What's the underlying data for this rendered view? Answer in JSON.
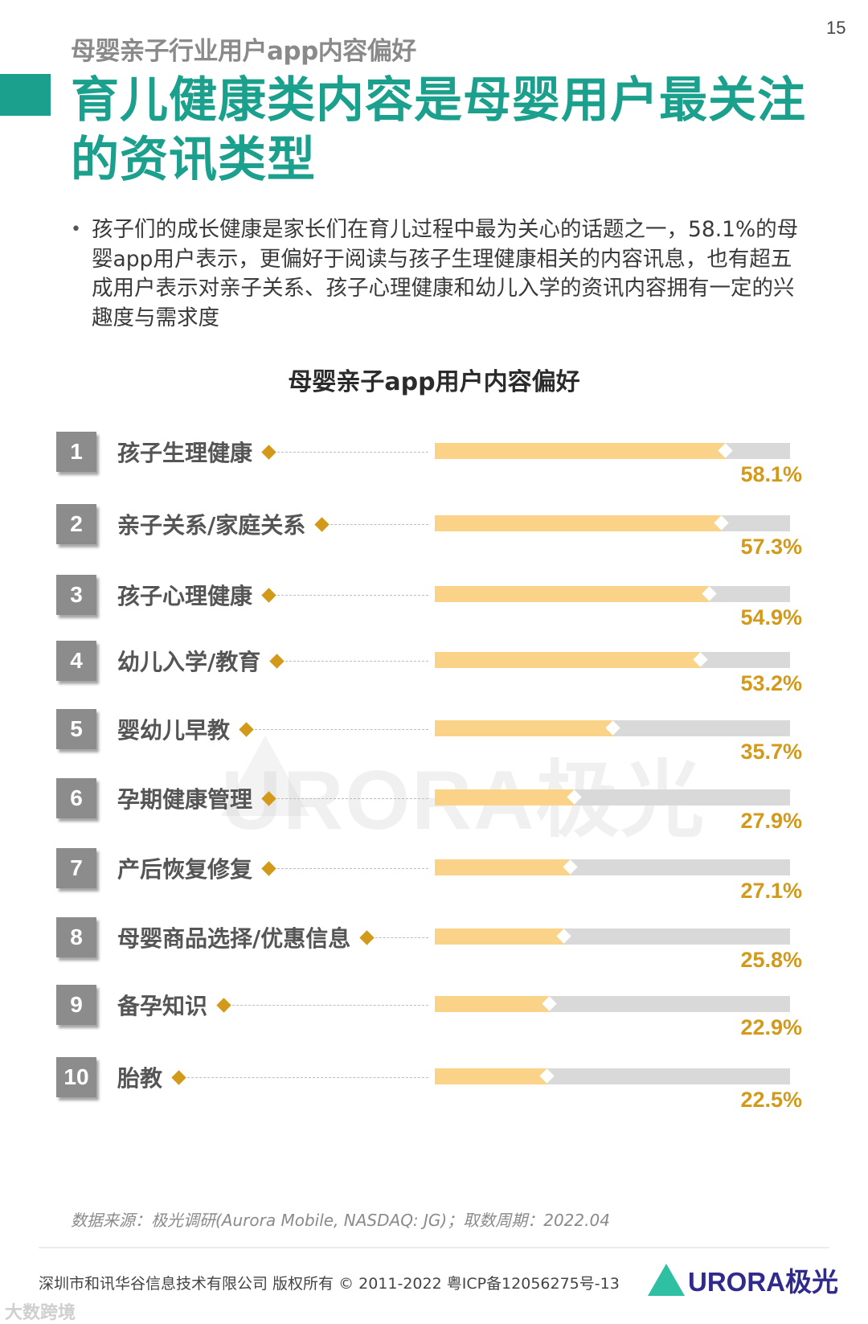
{
  "page": {
    "number": "15"
  },
  "header": {
    "kicker": "母婴亲子行业用户app内容偏好",
    "headline": "育儿健康类内容是母婴用户最关注的资讯类型",
    "accent_color": "#1aa08c"
  },
  "summary": {
    "bullet": "孩子们的成长健康是家长们在育儿过程中最为关心的话题之一，58.1%的母婴app用户表示，更偏好于阅读与孩子生理健康相关的内容讯息，也有超五成用户表示对亲子关系、孩子心理健康和幼儿入学的资讯内容拥有一定的兴趣度与需求度"
  },
  "chart_data": {
    "type": "bar",
    "orientation": "horizontal",
    "title": "母婴亲子app用户内容偏好",
    "xlabel": "",
    "ylabel": "",
    "xlim": [
      0,
      71
    ],
    "grid": false,
    "legend": null,
    "categories": [
      "孩子生理健康",
      "亲子关系/家庭关系",
      "孩子心理健康",
      "幼儿入学/教育",
      "婴幼儿早教",
      "孕期健康管理",
      "产后恢复修复",
      "母婴商品选择/优惠信息",
      "备孕知识",
      "胎教"
    ],
    "values": [
      58.1,
      57.3,
      54.9,
      53.2,
      35.7,
      27.9,
      27.1,
      25.8,
      22.9,
      22.5
    ],
    "value_labels": [
      "58.1%",
      "57.3%",
      "54.9%",
      "53.2%",
      "35.7%",
      "27.9%",
      "27.1%",
      "25.8%",
      "22.9%",
      "22.5%"
    ],
    "ranks": [
      "1",
      "2",
      "3",
      "4",
      "5",
      "6",
      "7",
      "8",
      "9",
      "10"
    ],
    "colors": {
      "fill": "#fad288",
      "track": "#d9d9d9",
      "value_text": "#d39a1a",
      "rank_box": "#8c8c8c"
    }
  },
  "watermark": {
    "text": "URORA极光"
  },
  "footer": {
    "source": "数据来源：极光调研(Aurora Mobile, NASDAQ: JG)；取数周期：2022.04",
    "copyright": "深圳市和讯华谷信息技术有限公司 版权所有 © 2011-2022 粤ICP备12056275号-13",
    "logo_text": "URORA极光",
    "stamp": "大数跨境"
  }
}
